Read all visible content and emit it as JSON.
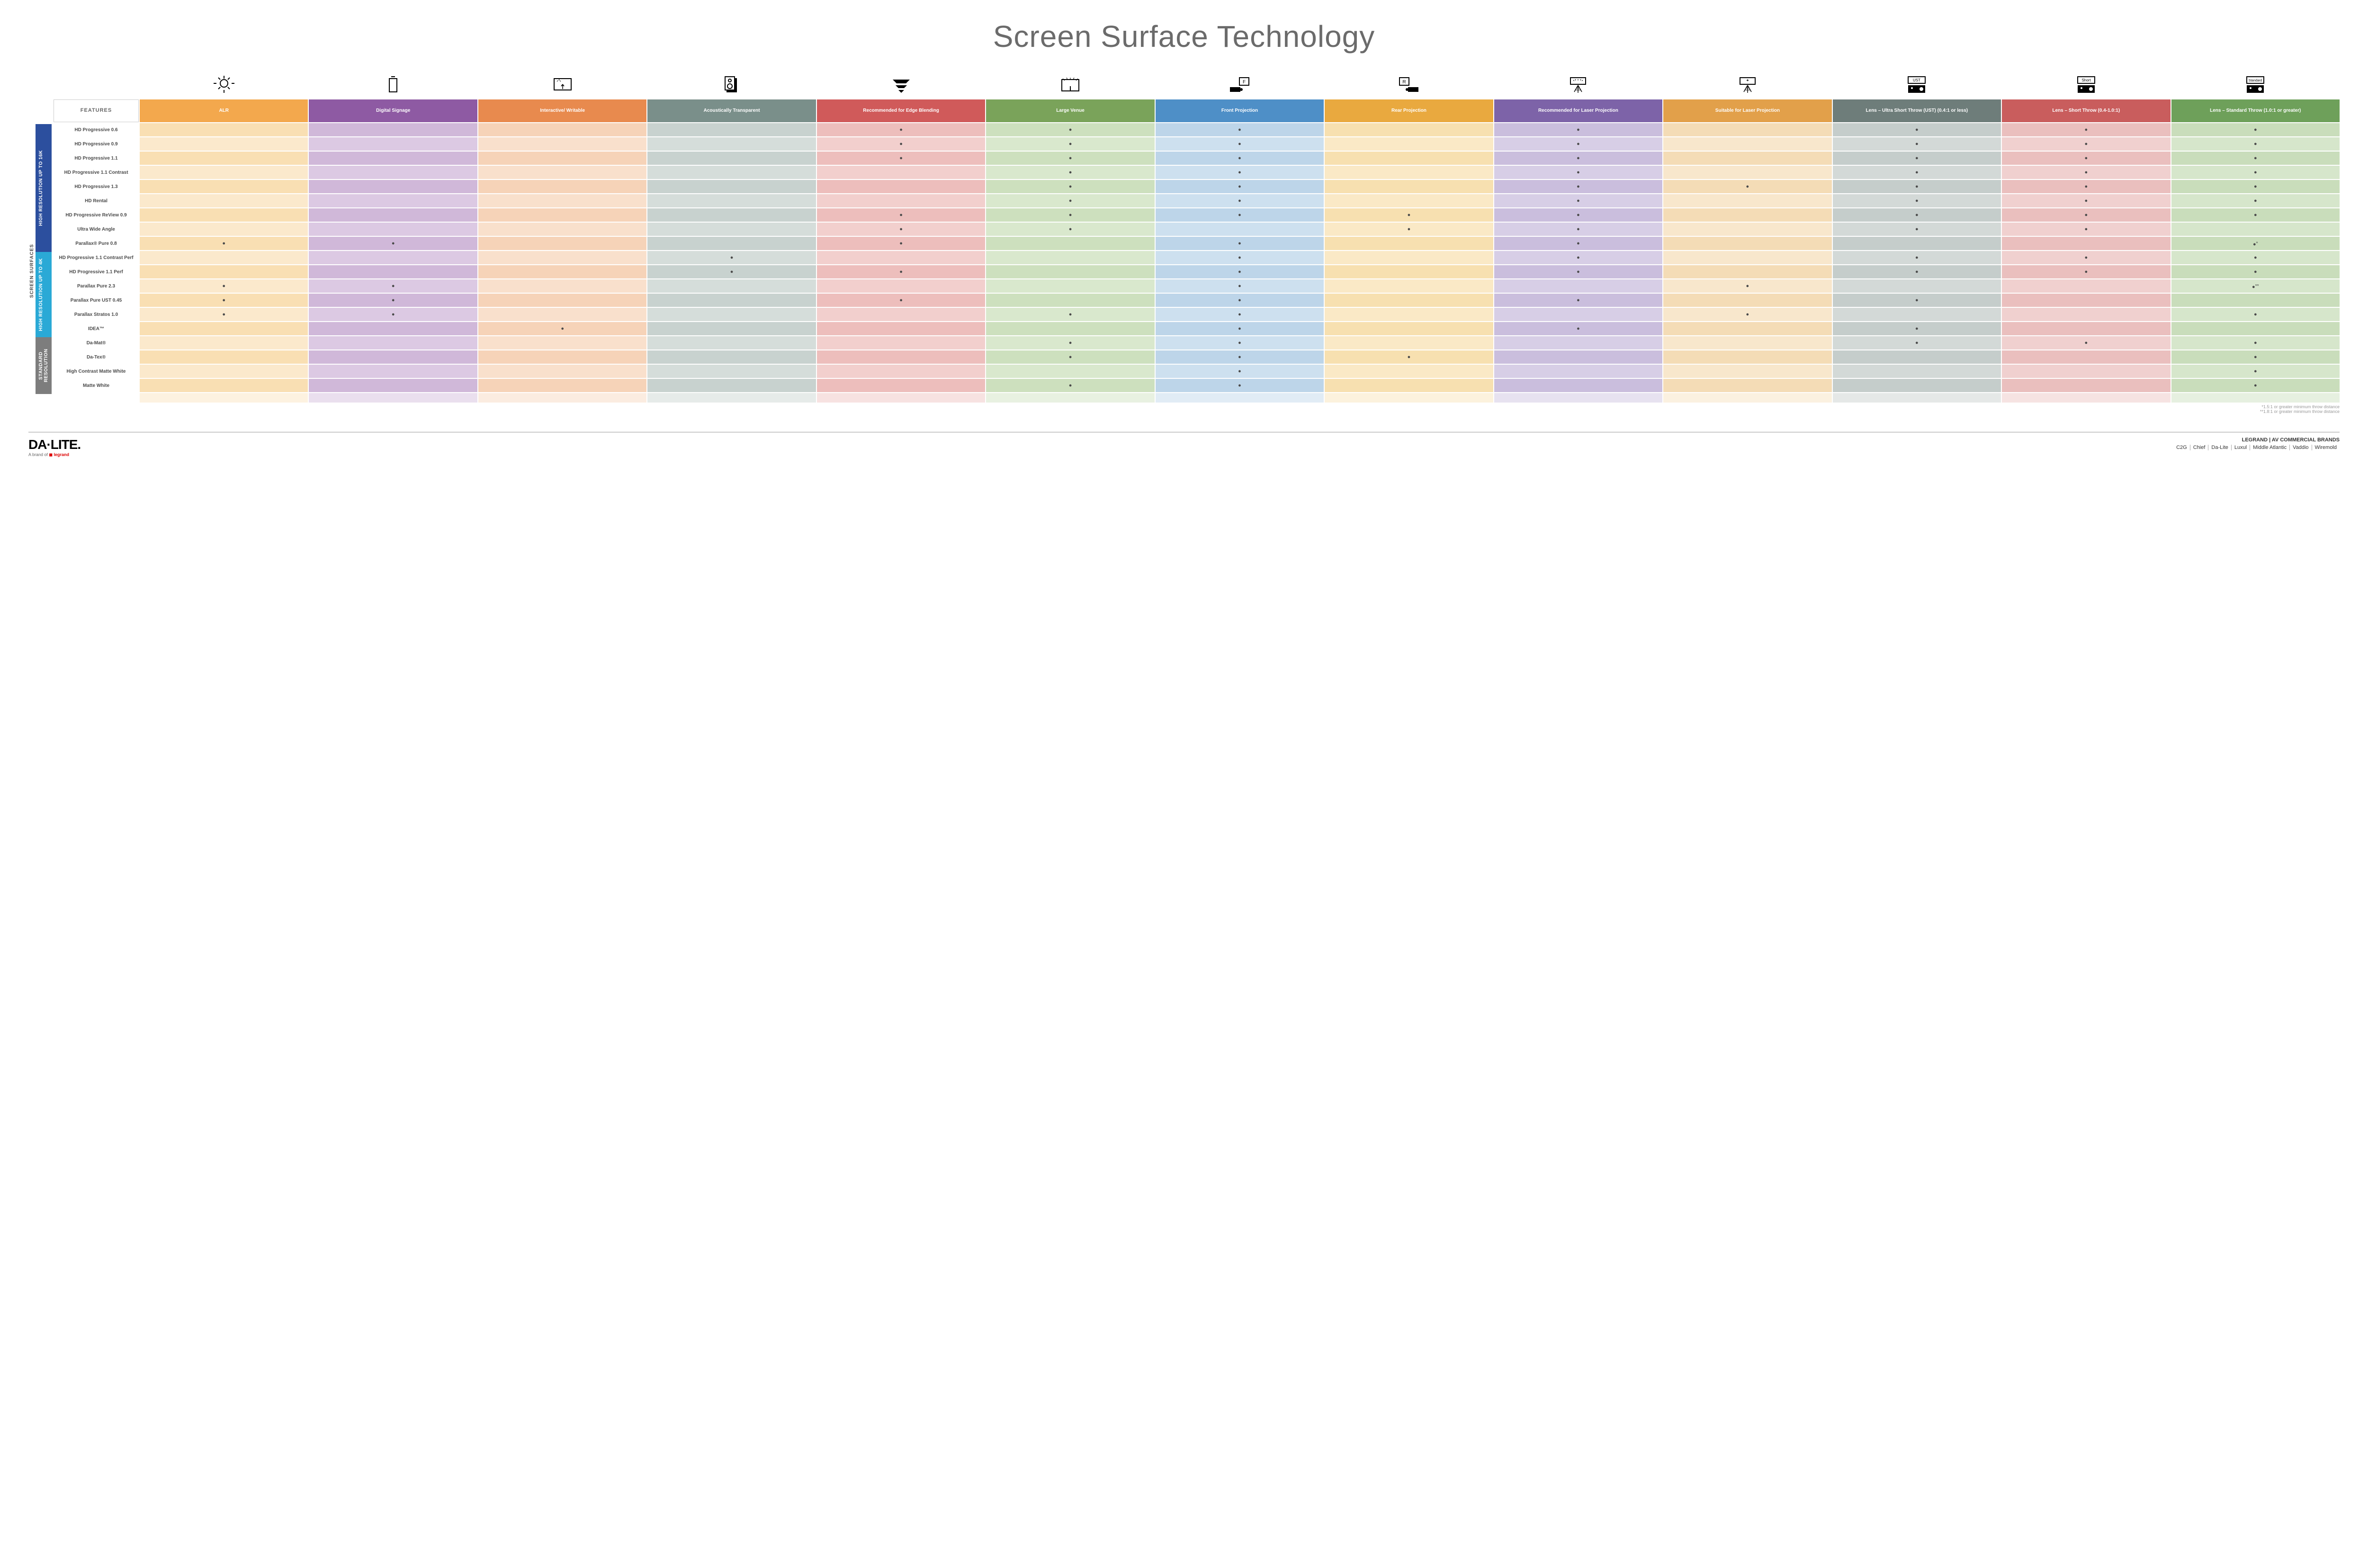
{
  "title": "Screen Surface Technology",
  "columns": [
    {
      "key": "alr",
      "label": "ALR",
      "color": "#f3a84d",
      "tint": "#f9dfb3",
      "alt": "#fbe9cc"
    },
    {
      "key": "sig",
      "label": "Digital Signage",
      "color": "#8e5aa3",
      "tint": "#d0b8d9",
      "alt": "#dcc9e3"
    },
    {
      "key": "int",
      "label": "Interactive/ Writable",
      "color": "#e88a4e",
      "tint": "#f6d3b8",
      "alt": "#f9e0cc"
    },
    {
      "key": "aco",
      "label": "Acoustically Transparent",
      "color": "#7a8f8a",
      "tint": "#c8d2cf",
      "alt": "#d5ddda"
    },
    {
      "key": "edg",
      "label": "Recommended for Edge Blending",
      "color": "#d05a5a",
      "tint": "#edbebc",
      "alt": "#f2cfcd"
    },
    {
      "key": "lrg",
      "label": "Large Venue",
      "color": "#7aa35a",
      "tint": "#cde0be",
      "alt": "#d9e8cd"
    },
    {
      "key": "frt",
      "label": "Front Projection",
      "color": "#4e8fc7",
      "tint": "#bdd5e9",
      "alt": "#cde0ef"
    },
    {
      "key": "rea",
      "label": "Rear Projection",
      "color": "#e9a93f",
      "tint": "#f7e0b0",
      "alt": "#fae9c6"
    },
    {
      "key": "rls",
      "label": "Recommended for Laser Projection",
      "color": "#7d63a8",
      "tint": "#cabedd",
      "alt": "#d7cee6"
    },
    {
      "key": "sls",
      "label": "Suitable for Laser Projection",
      "color": "#e2a04a",
      "tint": "#f4dcb6",
      "alt": "#f8e7cc"
    },
    {
      "key": "ust",
      "label": "Lens – Ultra Short Throw (UST) (0.4:1 or less)",
      "color": "#6e7d7a",
      "tint": "#c5cdcb",
      "alt": "#d3d9d7"
    },
    {
      "key": "sht",
      "label": "Lens – Short Throw (0.4-1.0:1)",
      "color": "#c95d5d",
      "tint": "#eabfbe",
      "alt": "#f0d0cf"
    },
    {
      "key": "std",
      "label": "Lens – Standard Throw (1.0:1 or greater)",
      "color": "#6ea05a",
      "tint": "#c9ddbb",
      "alt": "#d6e6cb"
    }
  ],
  "groups": [
    {
      "label": "HIGH RESOLUTION UP TO 16K",
      "color": "#2c4f9e",
      "rows": [
        {
          "name": "HD Progressive 0.6",
          "d": {
            "edg": "●",
            "lrg": "●",
            "frt": "●",
            "rls": "●",
            "ust": "●",
            "sht": "●",
            "std": "●"
          }
        },
        {
          "name": "HD Progressive 0.9",
          "d": {
            "edg": "●",
            "lrg": "●",
            "frt": "●",
            "rls": "●",
            "ust": "●",
            "sht": "●",
            "std": "●"
          }
        },
        {
          "name": "HD Progressive 1.1",
          "d": {
            "edg": "●",
            "lrg": "●",
            "frt": "●",
            "rls": "●",
            "ust": "●",
            "sht": "●",
            "std": "●"
          }
        },
        {
          "name": "HD Progressive 1.1 Contrast",
          "d": {
            "lrg": "●",
            "frt": "●",
            "rls": "●",
            "ust": "●",
            "sht": "●",
            "std": "●"
          }
        },
        {
          "name": "HD Progressive 1.3",
          "d": {
            "lrg": "●",
            "frt": "●",
            "rls": "●",
            "sls": "●",
            "ust": "●",
            "sht": "●",
            "std": "●"
          }
        },
        {
          "name": "HD Rental",
          "d": {
            "lrg": "●",
            "frt": "●",
            "rls": "●",
            "ust": "●",
            "sht": "●",
            "std": "●"
          }
        },
        {
          "name": "HD Progressive ReView 0.9",
          "d": {
            "edg": "●",
            "lrg": "●",
            "frt": "●",
            "rea": "●",
            "rls": "●",
            "ust": "●",
            "sht": "●",
            "std": "●"
          }
        },
        {
          "name": "Ultra Wide Angle",
          "d": {
            "edg": "●",
            "lrg": "●",
            "rea": "●",
            "rls": "●",
            "ust": "●",
            "sht": "●"
          }
        },
        {
          "name": "Parallax® Pure 0.8",
          "d": {
            "alr": "●",
            "sig": "●",
            "edg": "●",
            "frt": "●",
            "rls": "●",
            "std": "●*"
          }
        }
      ]
    },
    {
      "label": "HIGH RESOLUTION UP TO 4K",
      "color": "#2aa9d6",
      "rows": [
        {
          "name": "HD Progressive 1.1 Contrast Perf",
          "d": {
            "aco": "●",
            "frt": "●",
            "rls": "●",
            "ust": "●",
            "sht": "●",
            "std": "●"
          }
        },
        {
          "name": "HD Progressive 1.1 Perf",
          "d": {
            "aco": "●",
            "edg": "●",
            "frt": "●",
            "rls": "●",
            "ust": "●",
            "sht": "●",
            "std": "●"
          }
        },
        {
          "name": "Parallax Pure 2.3",
          "d": {
            "alr": "●",
            "sig": "●",
            "frt": "●",
            "sls": "●",
            "std": "●**"
          }
        },
        {
          "name": "Parallax Pure UST 0.45",
          "d": {
            "alr": "●",
            "sig": "●",
            "edg": "●",
            "frt": "●",
            "rls": "●",
            "ust": "●"
          }
        },
        {
          "name": "Parallax Stratos 1.0",
          "d": {
            "alr": "●",
            "sig": "●",
            "lrg": "●",
            "frt": "●",
            "sls": "●",
            "std": "●"
          }
        },
        {
          "name": "IDEA™",
          "d": {
            "int": "●",
            "frt": "●",
            "rls": "●",
            "ust": "●"
          }
        }
      ]
    },
    {
      "label": "STANDARD RESOLUTION",
      "color": "#7d7d7d",
      "rows": [
        {
          "name": "Da-Mat®",
          "d": {
            "lrg": "●",
            "frt": "●",
            "ust": "●",
            "sht": "●",
            "std": "●"
          }
        },
        {
          "name": "Da-Tex®",
          "d": {
            "lrg": "●",
            "frt": "●",
            "rea": "●",
            "std": "●"
          }
        },
        {
          "name": "High Contrast Matte White",
          "d": {
            "frt": "●",
            "std": "●"
          }
        },
        {
          "name": "Matte White",
          "d": {
            "lrg": "●",
            "frt": "●",
            "std": "●"
          }
        }
      ]
    }
  ],
  "outerLabel": "SCREEN SURFACES",
  "featuresHeader": "FEATURES",
  "footnote1": "*1.5:1 or greater minimum throw distance",
  "footnote2": "**1.8:1 or greater minimum throw distance",
  "logo": "DA·LITE.",
  "tagline_pre": "A brand of ",
  "tagline_brand": "legrand",
  "brandsTitle": "LEGRAND | AV COMMERCIAL BRANDS",
  "brands": [
    "C2G",
    "Chief",
    "Da-Lite",
    "Luxul",
    "Middle Atlantic",
    "Vaddio",
    "Wiremold"
  ]
}
